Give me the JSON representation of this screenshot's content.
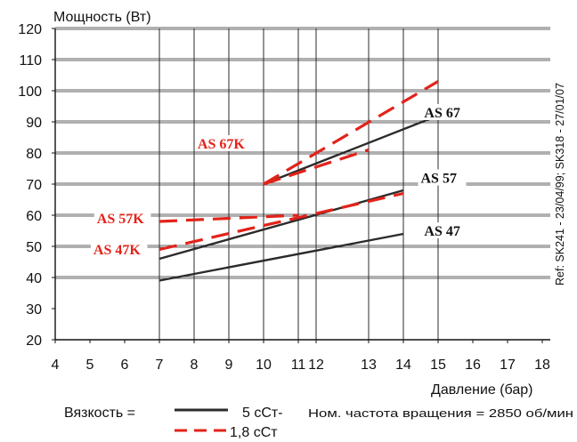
{
  "page_title": "",
  "colors": {
    "solid": "#2b2b2b",
    "dashed": "#e2231a",
    "grid": "#2b2b2b"
  },
  "chart_data": {
    "type": "line",
    "title": "",
    "ylabel": "Мощность (Вт)",
    "xlabel": "Давление (бар)",
    "ylim": [
      20,
      120
    ],
    "y_ticks": [
      20,
      30,
      40,
      50,
      60,
      70,
      80,
      90,
      100,
      110,
      120
    ],
    "x_ticks": [
      {
        "v": 4,
        "label": "4"
      },
      {
        "v": 5,
        "label": "5"
      },
      {
        "v": 6,
        "label": "6"
      },
      {
        "v": 7,
        "label": "7"
      },
      {
        "v": 8,
        "label": "8"
      },
      {
        "v": 9,
        "label": "9"
      },
      {
        "v": 10,
        "label": "10"
      },
      {
        "v": 11,
        "label": "11"
      },
      {
        "v": 12,
        "label": "12"
      },
      {
        "v": 13,
        "label": "13"
      },
      {
        "v": 14,
        "label": "14"
      },
      {
        "v": 15,
        "label": "15"
      },
      {
        "v": 16,
        "label": "16"
      },
      {
        "v": 17,
        "label": "17"
      },
      {
        "v": 18,
        "label": "18"
      }
    ],
    "x_ticks_note": "pressure tick labels are unevenly spaced in the original; drawn at their printed positions",
    "v_grid_at": [
      7,
      8,
      9,
      10,
      11,
      12,
      13,
      14,
      15
    ],
    "h_grid_at": [
      40,
      50,
      60,
      70,
      80,
      90,
      100,
      110,
      120
    ],
    "grid": true,
    "series": [
      {
        "name": "AS 67",
        "style": "solid",
        "points": [
          [
            10,
            70
          ],
          [
            15,
            92
          ]
        ]
      },
      {
        "name": "AS 57",
        "style": "solid",
        "points": [
          [
            7,
            46
          ],
          [
            14,
            68
          ]
        ]
      },
      {
        "name": "AS 47",
        "style": "solid",
        "points": [
          [
            7,
            39
          ],
          [
            14,
            54
          ]
        ]
      },
      {
        "name": "AS 67K",
        "style": "dashed",
        "points": [
          [
            10,
            70
          ],
          [
            15,
            103
          ]
        ]
      },
      {
        "name": "AS 67K",
        "style": "dashed",
        "points": [
          [
            10,
            70
          ],
          [
            13,
            81
          ]
        ]
      },
      {
        "name": "AS 57K",
        "style": "dashed",
        "points": [
          [
            7,
            58
          ],
          [
            11,
            60
          ]
        ]
      },
      {
        "name": "AS 47K",
        "style": "dashed",
        "points": [
          [
            7,
            49
          ],
          [
            14,
            67
          ]
        ]
      }
    ],
    "series_labels": [
      {
        "text": "AS 67",
        "color": "solid",
        "x": 14.6,
        "y": 92
      },
      {
        "text": "AS 57",
        "color": "solid",
        "x": 14.5,
        "y": 71
      },
      {
        "text": "AS 47",
        "color": "solid",
        "x": 14.6,
        "y": 54
      },
      {
        "text": "AS 67K",
        "color": "dashed",
        "x": 8.1,
        "y": 82
      },
      {
        "text": "AS 57K",
        "color": "dashed",
        "x": 5.2,
        "y": 58
      },
      {
        "text": "AS 47K",
        "color": "dashed",
        "x": 5.1,
        "y": 48
      }
    ],
    "annotations": {
      "side_note": "Ref: SK241 - 23/04/99; SK318 - 27/01/07",
      "legend_label": "Вязкость =",
      "legend_solid": "5 cСт-",
      "legend_note": "Ном. частота вращения = 2850 об/мин",
      "legend_dashed": "1,8 cСт"
    }
  }
}
